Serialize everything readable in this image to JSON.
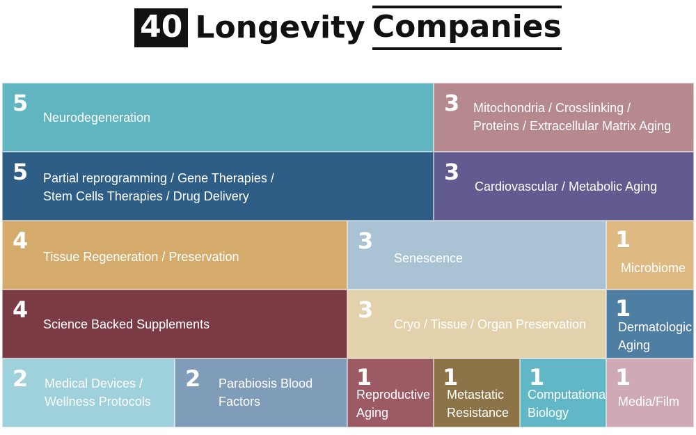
{
  "title": {
    "number": "40",
    "word1": "Longevity",
    "word2": "Companies"
  },
  "chart_data": {
    "type": "treemap",
    "title": "40 Longevity Companies",
    "total": 40,
    "items": [
      {
        "label": "Neurodegeneration",
        "value": 5,
        "color": "#61b5c1"
      },
      {
        "label": "Mitochondria / Crosslinking /\nProteins / Extracellular Matrix Aging",
        "value": 3,
        "color": "#b5898e"
      },
      {
        "label": "Partial reprogramming / Gene Therapies /\nStem Cells Therapies / Drug Delivery",
        "value": 5,
        "color": "#2e5e86"
      },
      {
        "label": "Cardiovascular / Metabolic Aging",
        "value": 3,
        "color": "#625b8f"
      },
      {
        "label": "Tissue Regeneration / Preservation",
        "value": 4,
        "color": "#d4ab6b"
      },
      {
        "label": "Senescence",
        "value": 3,
        "color": "#a9c3d4"
      },
      {
        "label": "Microbiome",
        "value": 1,
        "color": "#deb981"
      },
      {
        "label": "Science Backed Supplements",
        "value": 4,
        "color": "#7a3b45"
      },
      {
        "label": "Cryo / Tissue / Organ Preservation",
        "value": 3,
        "color": "#e3d1ab"
      },
      {
        "label": "Dermatologic\nAging",
        "value": 1,
        "color": "#4f7ea3"
      },
      {
        "label": "Medical Devices /\nWellness Protocols",
        "value": 2,
        "color": "#9fd1dc"
      },
      {
        "label": "Parabiosis Blood\nFactors",
        "value": 2,
        "color": "#7f9db9"
      },
      {
        "label": "Reproductive\nAging",
        "value": 1,
        "color": "#9c5a65"
      },
      {
        "label": "Metastatic\nResistance",
        "value": 1,
        "color": "#8c7448"
      },
      {
        "label": "Computational\nBiology",
        "value": 1,
        "color": "#62b7c7"
      },
      {
        "label": "Media/Film",
        "value": 1,
        "color": "#cfa9b5"
      }
    ]
  }
}
